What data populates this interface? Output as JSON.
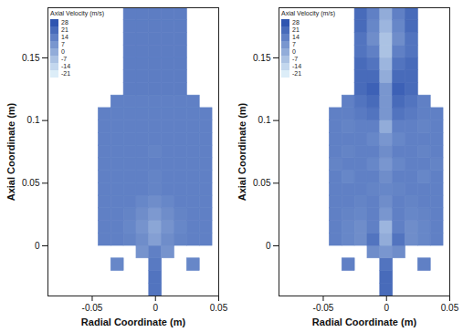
{
  "chart_data": [
    {
      "type": "heatmap",
      "x_label": "Radial Coordinate (m)",
      "y_label": "Axial Coordinate (m)",
      "xlim": [
        -0.085,
        0.05
      ],
      "ylim": [
        -0.04,
        0.19
      ],
      "xticks": [
        -0.05,
        0,
        0.05
      ],
      "yticks": [
        0,
        0.05,
        0.1,
        0.15
      ],
      "x": [
        -0.04,
        -0.03,
        -0.02,
        -0.01,
        0,
        0.01,
        0.02,
        0.03,
        0.04
      ],
      "y": [
        -0.035,
        -0.025,
        -0.015,
        -0.005,
        0.005,
        0.015,
        0.025,
        0.035,
        0.045,
        0.055,
        0.065,
        0.075,
        0.085,
        0.095,
        0.105,
        0.115,
        0.125,
        0.135,
        0.145,
        0.155,
        0.165,
        0.175,
        0.185
      ],
      "values": [
        [
          null,
          null,
          null,
          null,
          18,
          null,
          null,
          null,
          null
        ],
        [
          null,
          null,
          null,
          null,
          18,
          null,
          null,
          null,
          null
        ],
        [
          null,
          12,
          null,
          null,
          16,
          null,
          null,
          12,
          null
        ],
        [
          null,
          null,
          null,
          8,
          14,
          8,
          null,
          null,
          null
        ],
        [
          14,
          14,
          13,
          10,
          4,
          10,
          13,
          14,
          14
        ],
        [
          14,
          14,
          12,
          8,
          2,
          8,
          12,
          14,
          14
        ],
        [
          14,
          14,
          13,
          10,
          6,
          10,
          13,
          14,
          14
        ],
        [
          14,
          14,
          14,
          12,
          10,
          12,
          14,
          14,
          14
        ],
        [
          14,
          14,
          14,
          14,
          13,
          14,
          14,
          14,
          14
        ],
        [
          14,
          14,
          14,
          14,
          13,
          14,
          14,
          14,
          14
        ],
        [
          14,
          14,
          14,
          14,
          14,
          14,
          14,
          14,
          14
        ],
        [
          14,
          14,
          14,
          14,
          13,
          14,
          14,
          14,
          14
        ],
        [
          14,
          14,
          14,
          14,
          14,
          14,
          14,
          14,
          14
        ],
        [
          14,
          14,
          14,
          14,
          14,
          14,
          14,
          14,
          14
        ],
        [
          14,
          14,
          14,
          14,
          14,
          14,
          14,
          14,
          14
        ],
        [
          null,
          14,
          14,
          14,
          14,
          14,
          14,
          14,
          null
        ],
        [
          null,
          null,
          15,
          15,
          15,
          15,
          15,
          null,
          null
        ],
        [
          null,
          null,
          15,
          15,
          15,
          15,
          15,
          null,
          null
        ],
        [
          null,
          null,
          15,
          15,
          15,
          15,
          15,
          null,
          null
        ],
        [
          null,
          null,
          15,
          15,
          15,
          15,
          15,
          null,
          null
        ],
        [
          null,
          null,
          15,
          15,
          15,
          15,
          15,
          null,
          null
        ],
        [
          null,
          null,
          15,
          15,
          15,
          15,
          15,
          null,
          null
        ],
        [
          null,
          null,
          15,
          15,
          15,
          15,
          15,
          null,
          null
        ]
      ],
      "colorbar": {
        "title": "Axial Velocity (m/s)",
        "range": [
          -21,
          28
        ],
        "ticks": [
          28,
          21,
          14,
          7,
          0,
          -7,
          -14,
          -21
        ]
      }
    },
    {
      "type": "heatmap",
      "x_label": "Radial Coordinate (m)",
      "y_label": "Axial Coordinate (m)",
      "xlim": [
        -0.085,
        0.05
      ],
      "ylim": [
        -0.04,
        0.19
      ],
      "xticks": [
        -0.05,
        0,
        0.05
      ],
      "yticks": [
        0,
        0.05,
        0.1,
        0.15
      ],
      "x": [
        -0.04,
        -0.03,
        -0.02,
        -0.01,
        0,
        0.01,
        0.02,
        0.03,
        0.04
      ],
      "y": [
        -0.035,
        -0.025,
        -0.015,
        -0.005,
        0.005,
        0.015,
        0.025,
        0.035,
        0.045,
        0.055,
        0.065,
        0.075,
        0.085,
        0.095,
        0.105,
        0.115,
        0.125,
        0.135,
        0.145,
        0.155,
        0.165,
        0.175,
        0.185
      ],
      "values": [
        [
          null,
          null,
          null,
          null,
          21,
          null,
          null,
          null,
          null
        ],
        [
          null,
          null,
          null,
          null,
          21,
          null,
          null,
          null,
          null
        ],
        [
          null,
          14,
          null,
          null,
          18,
          null,
          null,
          14,
          null
        ],
        [
          null,
          null,
          null,
          10,
          7,
          10,
          null,
          null,
          null
        ],
        [
          14,
          12,
          10,
          18,
          0,
          18,
          10,
          12,
          14
        ],
        [
          14,
          12,
          10,
          14,
          -3,
          14,
          10,
          12,
          14
        ],
        [
          14,
          13,
          12,
          14,
          7,
          14,
          12,
          13,
          14
        ],
        [
          14,
          14,
          13,
          14,
          10,
          14,
          13,
          14,
          14
        ],
        [
          14,
          14,
          14,
          13,
          12,
          13,
          14,
          14,
          14
        ],
        [
          14,
          12,
          14,
          14,
          10,
          14,
          14,
          12,
          14
        ],
        [
          13,
          14,
          14,
          12,
          7,
          12,
          14,
          14,
          13
        ],
        [
          14,
          13,
          14,
          14,
          10,
          14,
          14,
          13,
          14
        ],
        [
          14,
          14,
          14,
          12,
          7,
          12,
          14,
          14,
          14
        ],
        [
          14,
          13,
          14,
          14,
          0,
          14,
          14,
          13,
          14
        ],
        [
          14,
          14,
          16,
          18,
          7,
          18,
          16,
          14,
          14
        ],
        [
          null,
          14,
          18,
          21,
          7,
          21,
          18,
          14,
          null
        ],
        [
          null,
          null,
          21,
          24,
          7,
          24,
          21,
          null,
          null
        ],
        [
          null,
          null,
          21,
          21,
          0,
          21,
          21,
          null,
          null
        ],
        [
          null,
          null,
          21,
          18,
          -3,
          18,
          21,
          null,
          null
        ],
        [
          null,
          null,
          18,
          14,
          -7,
          14,
          18,
          null,
          null
        ],
        [
          null,
          null,
          18,
          10,
          -7,
          10,
          18,
          null,
          null
        ],
        [
          null,
          null,
          21,
          12,
          -3,
          12,
          21,
          null,
          null
        ],
        [
          null,
          null,
          21,
          14,
          0,
          14,
          21,
          null,
          null
        ]
      ],
      "colorbar": {
        "title": "Axial Velocity (m/s)",
        "range": [
          -21,
          28
        ],
        "ticks": [
          28,
          21,
          14,
          7,
          0,
          -7,
          -14,
          -21
        ]
      }
    }
  ]
}
